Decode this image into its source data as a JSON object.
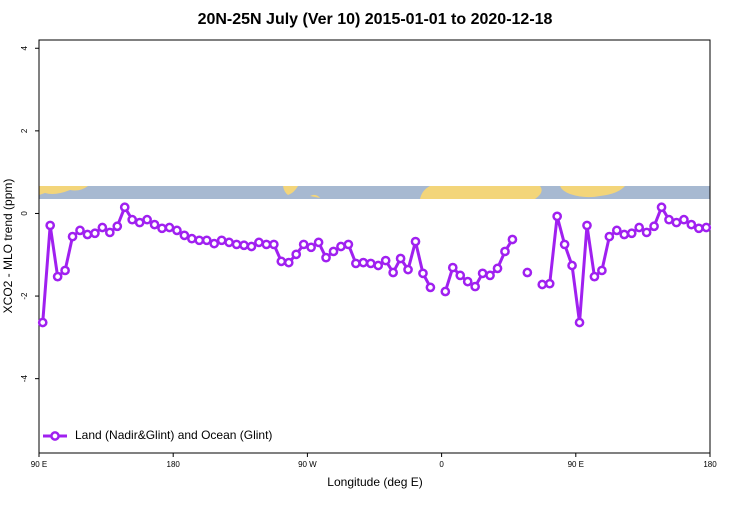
{
  "chart_data": {
    "type": "line",
    "title": "20N-25N July (Ver 10)   2015-01-01 to 2020-12-18",
    "x_label": "Longitude (deg E)",
    "y_label": "XCO2 - MLO trend (ppm)",
    "x": [
      92.5,
      97.5,
      102.5,
      107.5,
      112.5,
      117.5,
      122.5,
      127.5,
      132.5,
      137.5,
      142.5,
      147.5,
      152.5,
      157.5,
      162.5,
      167.5,
      172.5,
      177.5,
      182.5,
      187.5,
      192.5,
      197.5,
      202.5,
      207.5,
      212.5,
      217.5,
      222.5,
      227.5,
      232.5,
      237.5,
      242.5,
      247.5,
      252.5,
      257.5,
      262.5,
      267.5,
      272.5,
      277.5,
      282.5,
      287.5,
      292.5,
      297.5,
      302.5,
      307.5,
      312.5,
      317.5,
      322.5,
      327.5,
      332.5,
      337.5,
      342.5,
      347.5,
      352.5,
      357.5,
      362.5,
      367.5,
      372.5,
      377.5,
      382.5,
      387.5,
      392.5,
      397.5,
      402.5,
      407.5,
      412.5,
      417.5,
      422.5,
      427.5,
      432.5,
      437.5,
      442.5,
      447.5,
      452.5,
      457.5,
      462.5,
      467.5,
      472.5,
      477.5,
      482.5,
      487.5,
      492.5,
      497.5,
      502.5,
      507.5,
      512.5,
      517.5,
      522.5,
      527.5,
      532.5,
      537.5
    ],
    "series": [
      {
        "name": "Land (Nadir&Glint) and Ocean (Glint)",
        "color": "#a020f0",
        "values": [
          -2.64,
          -0.29,
          -1.53,
          -1.38,
          -0.56,
          -0.41,
          -0.51,
          -0.48,
          -0.34,
          -0.46,
          -0.31,
          0.15,
          -0.15,
          -0.22,
          -0.15,
          -0.27,
          -0.36,
          -0.34,
          -0.41,
          -0.53,
          -0.61,
          -0.65,
          -0.65,
          -0.73,
          -0.65,
          -0.7,
          -0.75,
          -0.77,
          -0.8,
          -0.7,
          -0.75,
          -0.75,
          -1.16,
          -1.19,
          -0.99,
          -0.75,
          -0.82,
          -0.7,
          -1.07,
          -0.92,
          -0.8,
          -0.75,
          -1.21,
          -1.19,
          -1.21,
          -1.26,
          -1.14,
          -1.43,
          -1.09,
          -1.36,
          -0.68,
          -1.45,
          -1.79,
          null,
          -1.89,
          -1.31,
          -1.5,
          -1.65,
          -1.77,
          -1.45,
          -1.5,
          -1.33,
          -0.92,
          -0.63,
          null,
          -1.43,
          null,
          -1.72,
          -1.7,
          -0.07,
          -0.75,
          -1.26,
          -2.64,
          -0.29,
          -1.53,
          -1.38,
          -0.56,
          -0.41,
          -0.51,
          -0.48,
          -0.34,
          -0.46,
          -0.31,
          0.15,
          -0.15,
          -0.22,
          -0.15,
          -0.27,
          -0.36,
          -0.34
        ]
      }
    ],
    "xlim": [
      90,
      540
    ],
    "ylim": [
      -5.8,
      4.2
    ],
    "xticks": [
      {
        "value": 90,
        "label": "90 E"
      },
      180,
      {
        "value": 270,
        "label": "90 W"
      },
      {
        "value": 360,
        "label": "0"
      },
      {
        "value": 450,
        "label": "90 E"
      },
      {
        "value": 540,
        "label": "180"
      }
    ],
    "yticks": [
      -4,
      -2,
      0,
      2,
      4
    ],
    "legend": "bottom-left"
  }
}
